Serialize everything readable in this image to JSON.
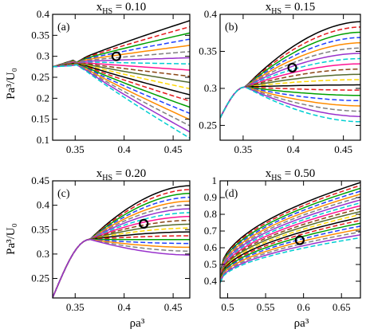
{
  "figure": {
    "ylabel": "Pa³/U₀",
    "xlabel": "ρa³"
  },
  "chart_data": [
    {
      "type": "line",
      "panel": "(a)",
      "title": "x",
      "title_sub": "HS",
      "title_rest": " = 0.10",
      "xlim": [
        0.327,
        0.467
      ],
      "ylim": [
        0.1,
        0.4
      ],
      "xticks": [
        "0.35",
        "0.4",
        "0.45"
      ],
      "yticks": [
        "0.1",
        "0.15",
        "0.2",
        "0.25",
        "0.3",
        "0.35",
        "0.4"
      ],
      "xtick_values": [
        0.35,
        0.4,
        0.45
      ],
      "ytick_values": [
        0.1,
        0.15,
        0.2,
        0.25,
        0.3,
        0.35,
        0.4
      ],
      "family": {
        "x0": 0.327,
        "y0": 0.275,
        "xc": 0.35,
        "yc": 0.287,
        "shape": "fan",
        "n": 20,
        "ytop": 0.385,
        "ybot": 0.105
      },
      "marker": {
        "x": 0.392,
        "y": 0.3
      }
    },
    {
      "type": "line",
      "panel": "(b)",
      "title": "x",
      "title_sub": "HS",
      "title_rest": " = 0.15",
      "xlim": [
        0.327,
        0.467
      ],
      "ylim": [
        0.23,
        0.4
      ],
      "xticks": [
        "0.35",
        "0.4",
        "0.45"
      ],
      "yticks": [
        "0.25",
        "0.3",
        "0.35",
        "0.4"
      ],
      "xtick_values": [
        0.35,
        0.4,
        0.45
      ],
      "ytick_values": [
        0.25,
        0.3,
        0.35,
        0.4
      ],
      "family": {
        "x0": 0.327,
        "y0": 0.26,
        "xc": 0.352,
        "yc": 0.302,
        "shape": "dip",
        "n": 20,
        "ytop": 0.39,
        "ybot": 0.255
      },
      "marker": {
        "x": 0.399,
        "y": 0.328
      }
    },
    {
      "type": "line",
      "panel": "(c)",
      "title": "x",
      "title_sub": "HS",
      "title_rest": " = 0.20",
      "xlim": [
        0.327,
        0.467
      ],
      "ylim": [
        0.21,
        0.45
      ],
      "xticks": [
        "0.35",
        "0.4",
        "0.45"
      ],
      "yticks": [
        "0.25",
        "0.3",
        "0.35",
        "0.4",
        "0.45"
      ],
      "xtick_values": [
        0.35,
        0.4,
        0.45
      ],
      "ytick_values": [
        0.25,
        0.3,
        0.35,
        0.4,
        0.45
      ],
      "family": {
        "x0": 0.33,
        "y0": 0.225,
        "xc": 0.365,
        "yc": 0.33,
        "shape": "dip",
        "n": 19,
        "ytop": 0.44,
        "ybot": 0.298
      },
      "marker": {
        "x": 0.42,
        "y": 0.362
      }
    },
    {
      "type": "line",
      "panel": "(d)",
      "title": "x",
      "title_sub": "HS",
      "title_rest": " = 0.50",
      "xlim": [
        0.49,
        0.675
      ],
      "ylim": [
        0.3,
        1.0
      ],
      "xticks": [
        "0.5",
        "0.55",
        "0.6",
        "0.65"
      ],
      "yticks": [
        "0.4",
        "0.5",
        "0.6",
        "0.7",
        "0.8",
        "0.9",
        "1"
      ],
      "xtick_values": [
        0.5,
        0.55,
        0.6,
        0.65
      ],
      "ytick_values": [
        0.4,
        0.5,
        0.6,
        0.7,
        0.8,
        0.9,
        1.0
      ],
      "family": {
        "x0": 0.5,
        "y0": 0.45,
        "xc": 0.5,
        "yc": 0.45,
        "shape": "rise",
        "n": 20,
        "ytop": 0.99,
        "ybot": 0.66
      },
      "marker": {
        "x": 0.595,
        "y": 0.645
      }
    }
  ],
  "series_colors": [
    "#000000",
    "#e41a1c",
    "#00a000",
    "#1f3fff",
    "#ff8c00",
    "#7f7f7f",
    "#9932cc",
    "#00ced1",
    "#ff1493",
    "#8b4513",
    "#556b2f",
    "#ffd700"
  ]
}
